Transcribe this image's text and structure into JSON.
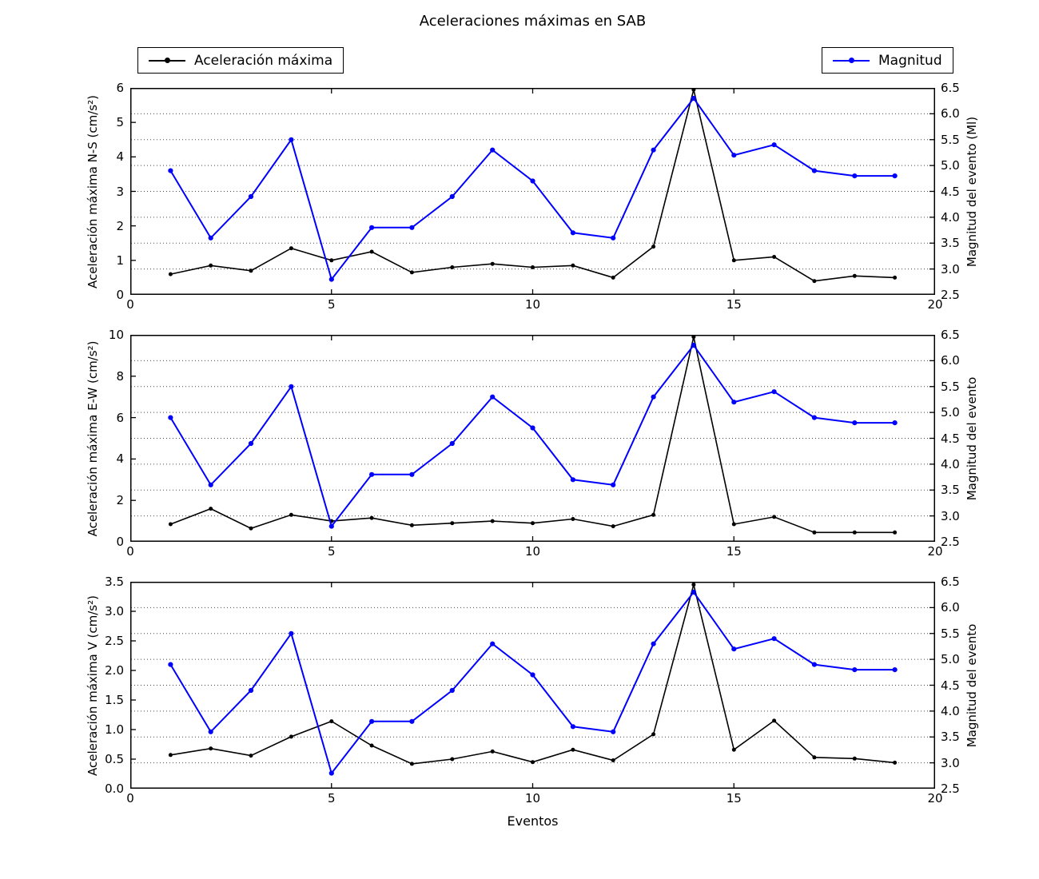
{
  "title": "Aceleraciones máximas en SAB",
  "xlabel": "Eventos",
  "legend": {
    "accel_label": "Aceleración máxima",
    "mag_label": "Magnitud",
    "accel_color": "#000000",
    "mag_color": "#0000ff"
  },
  "chart_data": [
    {
      "type": "line",
      "ylabel": "Aceleración máxima N-S (cm/s²)",
      "ylabel_right": "Magnitud del evento (Ml)",
      "xlim": [
        0,
        20
      ],
      "ylim": [
        0,
        6
      ],
      "ylim_right": [
        2.5,
        6.5
      ],
      "xticks": [
        "0",
        "5",
        "10",
        "15",
        "20"
      ],
      "yticks": [
        "0",
        "1",
        "2",
        "3",
        "4",
        "5",
        "6"
      ],
      "yticks_right": [
        "2.5",
        "3.0",
        "3.5",
        "4.0",
        "4.5",
        "5.0",
        "5.5",
        "6.0",
        "6.5"
      ],
      "grid": "horizontal dotted at right-axis ticks",
      "x": [
        1,
        2,
        3,
        4,
        5,
        6,
        7,
        8,
        9,
        10,
        11,
        12,
        13,
        14,
        15,
        16,
        17,
        18,
        19
      ],
      "series": [
        {
          "name": "Aceleración máxima",
          "axis": "left",
          "color": "#000000",
          "marker": "circle",
          "values": [
            0.6,
            0.85,
            0.7,
            1.35,
            1.0,
            1.25,
            0.65,
            0.8,
            0.9,
            0.8,
            0.85,
            0.5,
            1.4,
            5.95,
            1.0,
            1.1,
            0.4,
            0.55,
            0.5
          ]
        },
        {
          "name": "Magnitud",
          "axis": "right",
          "color": "#0000ff",
          "marker": "circle",
          "values": [
            4.9,
            3.6,
            4.4,
            5.5,
            2.8,
            3.8,
            3.8,
            4.4,
            5.3,
            4.7,
            3.7,
            3.6,
            5.3,
            6.3,
            5.2,
            5.4,
            4.9,
            4.8,
            4.8
          ]
        }
      ]
    },
    {
      "type": "line",
      "ylabel": "Aceleración máxima E-W (cm/s²)",
      "ylabel_right": "Magnitud del evento",
      "xlim": [
        0,
        20
      ],
      "ylim": [
        0,
        10
      ],
      "ylim_right": [
        2.5,
        6.5
      ],
      "xticks": [
        "0",
        "5",
        "10",
        "15",
        "20"
      ],
      "yticks": [
        "0",
        "2",
        "4",
        "6",
        "8",
        "10"
      ],
      "yticks_right": [
        "2.5",
        "3.0",
        "3.5",
        "4.0",
        "4.5",
        "5.0",
        "5.5",
        "6.0",
        "6.5"
      ],
      "grid": "horizontal dotted at right-axis ticks",
      "x": [
        1,
        2,
        3,
        4,
        5,
        6,
        7,
        8,
        9,
        10,
        11,
        12,
        13,
        14,
        15,
        16,
        17,
        18,
        19
      ],
      "series": [
        {
          "name": "Aceleración máxima",
          "axis": "left",
          "color": "#000000",
          "marker": "circle",
          "values": [
            0.85,
            1.6,
            0.65,
            1.3,
            1.0,
            1.15,
            0.8,
            0.9,
            1.0,
            0.9,
            1.1,
            0.75,
            1.3,
            9.9,
            0.85,
            1.2,
            0.45,
            0.45,
            0.45
          ]
        },
        {
          "name": "Magnitud",
          "axis": "right",
          "color": "#0000ff",
          "marker": "circle",
          "values": [
            4.9,
            3.6,
            4.4,
            5.5,
            2.8,
            3.8,
            3.8,
            4.4,
            5.3,
            4.7,
            3.7,
            3.6,
            5.3,
            6.3,
            5.2,
            5.4,
            4.9,
            4.8,
            4.8
          ]
        }
      ]
    },
    {
      "type": "line",
      "ylabel": "Aceleración máxima V (cm/s²)",
      "ylabel_right": "Magnitud del evento",
      "xlim": [
        0,
        20
      ],
      "ylim": [
        0,
        3.5
      ],
      "ylim_right": [
        2.5,
        6.5
      ],
      "xticks": [
        "0",
        "5",
        "10",
        "15",
        "20"
      ],
      "yticks": [
        "0.0",
        "0.5",
        "1.0",
        "1.5",
        "2.0",
        "2.5",
        "3.0",
        "3.5"
      ],
      "yticks_right": [
        "2.5",
        "3.0",
        "3.5",
        "4.0",
        "4.5",
        "5.0",
        "5.5",
        "6.0",
        "6.5"
      ],
      "grid": "horizontal dotted at right-axis ticks",
      "x": [
        1,
        2,
        3,
        4,
        5,
        6,
        7,
        8,
        9,
        10,
        11,
        12,
        13,
        14,
        15,
        16,
        17,
        18,
        19
      ],
      "series": [
        {
          "name": "Aceleración máxima",
          "axis": "left",
          "color": "#000000",
          "marker": "circle",
          "values": [
            0.57,
            0.68,
            0.56,
            0.88,
            1.14,
            0.73,
            0.42,
            0.5,
            0.63,
            0.45,
            0.66,
            0.48,
            0.92,
            3.45,
            0.66,
            1.15,
            0.53,
            0.51,
            0.44
          ]
        },
        {
          "name": "Magnitud",
          "axis": "right",
          "color": "#0000ff",
          "marker": "circle",
          "values": [
            4.9,
            3.6,
            4.4,
            5.5,
            2.8,
            3.8,
            3.8,
            4.4,
            5.3,
            4.7,
            3.7,
            3.6,
            5.3,
            6.3,
            5.2,
            5.4,
            4.9,
            4.8,
            4.8
          ]
        }
      ]
    }
  ]
}
